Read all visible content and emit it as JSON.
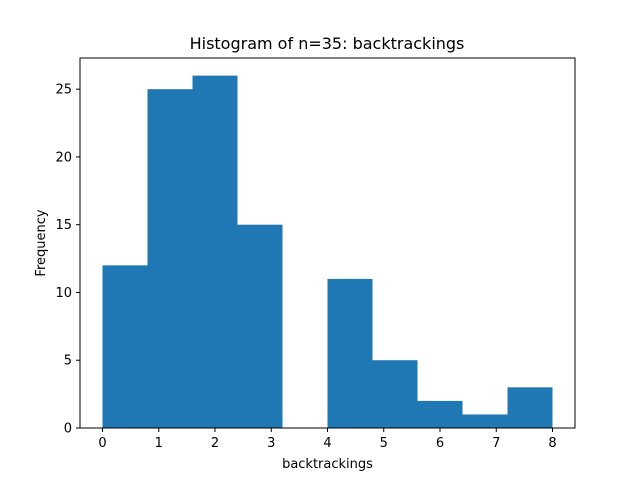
{
  "chart_data": {
    "type": "bar",
    "title": "Histogram of n=35: backtrackings",
    "xlabel": "backtrackings",
    "ylabel": "Frequency",
    "bin_edges": [
      0,
      0.8,
      1.6,
      2.4,
      3.2,
      4.0,
      4.8,
      5.6,
      6.4,
      7.2,
      8.0
    ],
    "values": [
      12,
      25,
      26,
      15,
      0,
      11,
      5,
      2,
      1,
      3
    ],
    "xlim": [
      -0.4,
      8.4
    ],
    "ylim": [
      0,
      27.3
    ],
    "xticks": [
      0,
      1,
      2,
      3,
      4,
      5,
      6,
      7,
      8
    ],
    "yticks": [
      0,
      5,
      10,
      15,
      20,
      25
    ],
    "bar_color": "#1f77b4",
    "grid": false,
    "legend": "none"
  }
}
